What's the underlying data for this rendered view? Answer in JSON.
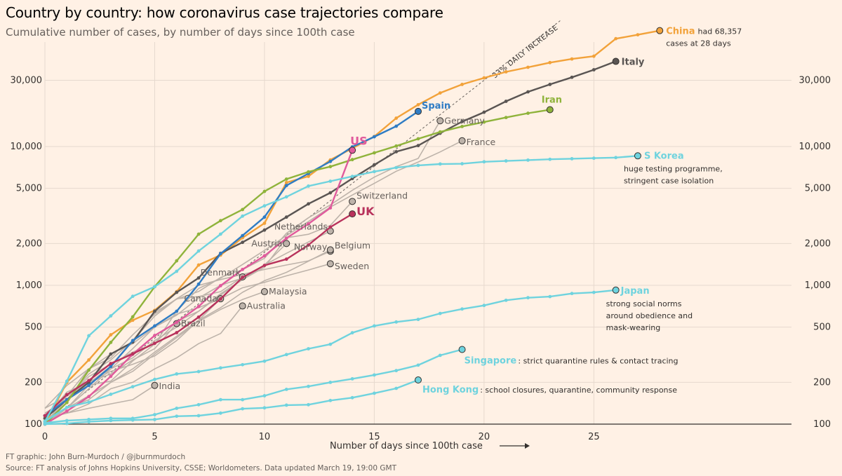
{
  "title": "Country by country: how coronavirus case trajectories compare",
  "subtitle": "Cumulative number of cases, by number of days since 100th case",
  "credit": "FT graphic: John Burn-Murdoch / @jburnmurdoch",
  "source": "Source: FT analysis of Johns Hopkins University, CSSE; Worldometers. Data updated March 19, 19:00 GMT",
  "chart_data": {
    "type": "line",
    "title": "Country by country: how coronavirus case trajectories compare",
    "xlabel": "Number of days since 100th case",
    "ylabel": "",
    "xlim": [
      0,
      34
    ],
    "ylim": [
      100,
      90000
    ],
    "yscale": "log",
    "xticks": [
      0,
      5,
      10,
      15,
      20,
      25
    ],
    "yticks": [
      100,
      200,
      500,
      1000,
      2000,
      5000,
      10000,
      30000
    ],
    "ytick_labels": [
      "100",
      "200",
      "500",
      "1,000",
      "2,000",
      "5,000",
      "10,000",
      "30,000"
    ],
    "grid": true,
    "reference_line": {
      "label": "33% DAILY INCREASE",
      "growth": 1.33
    },
    "series": [
      {
        "name": "China",
        "color": "#f2a23a",
        "bold": true,
        "x": [
          0,
          1,
          2,
          3,
          4,
          5,
          6,
          7,
          8,
          9,
          10,
          11,
          12,
          13,
          14,
          15,
          16,
          17,
          18,
          19,
          20,
          21,
          22,
          23,
          24,
          25,
          26,
          27,
          28
        ],
        "y": [
          100,
          200,
          290,
          440,
          560,
          660,
          900,
          1400,
          1650,
          2200,
          2800,
          5500,
          6100,
          8000,
          9700,
          11800,
          16000,
          20000,
          24300,
          28000,
          31200,
          34500,
          37200,
          40200,
          42700,
          44700,
          59800,
          63800,
          68357
        ],
        "annotation": [
          "had 68,357",
          "cases at 28 days"
        ]
      },
      {
        "name": "Italy",
        "color": "#5a5553",
        "bold": true,
        "x": [
          0,
          1,
          2,
          3,
          4,
          5,
          6,
          7,
          8,
          9,
          10,
          11,
          12,
          13,
          14,
          15,
          16,
          17,
          18,
          19,
          20,
          21,
          22,
          23,
          24,
          25,
          26
        ],
        "y": [
          110,
          150,
          200,
          320,
          390,
          650,
          890,
          1130,
          1700,
          2040,
          2500,
          3100,
          3860,
          4640,
          5880,
          7380,
          9170,
          10150,
          12460,
          15110,
          17660,
          21160,
          24750,
          27990,
          31510,
          35710,
          41040
        ]
      },
      {
        "name": "Spain",
        "color": "#2f7cc4",
        "bold": true,
        "x": [
          0,
          1,
          2,
          3,
          4,
          5,
          6,
          7,
          8,
          9,
          10,
          11,
          12,
          13,
          14,
          15,
          16,
          17
        ],
        "y": [
          115,
          150,
          190,
          260,
          400,
          510,
          650,
          1020,
          1690,
          2280,
          3100,
          5230,
          6390,
          7800,
          9940,
          11750,
          14000,
          17900
        ]
      },
      {
        "name": "Iran",
        "color": "#8fb33b",
        "bold": true,
        "x": [
          0,
          1,
          2,
          3,
          4,
          5,
          6,
          7,
          8,
          9,
          10,
          11,
          12,
          13,
          14,
          15,
          16,
          17,
          18,
          19,
          20,
          21,
          22,
          23
        ],
        "y": [
          100,
          143,
          245,
          388,
          593,
          978,
          1501,
          2336,
          2922,
          3513,
          4747,
          5823,
          6566,
          7161,
          8042,
          9000,
          10075,
          11364,
          12729,
          13938,
          14991,
          16169,
          17361,
          18407
        ]
      },
      {
        "name": "US",
        "color": "#e05a9c",
        "bold": true,
        "x": [
          0,
          1,
          2,
          3,
          4,
          5,
          6,
          7,
          8,
          9,
          10,
          11,
          12,
          13,
          14
        ],
        "y": [
          100,
          124,
          158,
          221,
          319,
          435,
          541,
          704,
          994,
          1301,
          1630,
          2183,
          2770,
          3613,
          9400
        ]
      },
      {
        "name": "UK",
        "color": "#b8325c",
        "bold": true,
        "x": [
          0,
          1,
          2,
          3,
          4,
          5,
          6,
          7,
          8,
          9,
          10,
          11,
          12,
          13,
          14
        ],
        "y": [
          115,
          163,
          206,
          273,
          321,
          382,
          456,
          590,
          798,
          1140,
          1391,
          1543,
          1950,
          2626,
          3269
        ]
      },
      {
        "name": "S Korea",
        "color": "#6fd3de",
        "bold": true,
        "x": [
          0,
          1,
          2,
          3,
          4,
          5,
          6,
          7,
          8,
          9,
          10,
          11,
          12,
          13,
          14,
          15,
          16,
          17,
          18,
          19,
          20,
          21,
          22,
          23,
          24,
          25,
          26,
          27
        ],
        "y": [
          104,
          204,
          433,
          602,
          833,
          977,
          1261,
          1766,
          2337,
          3150,
          3736,
          4335,
          5186,
          5621,
          6088,
          6593,
          7041,
          7313,
          7478,
          7513,
          7755,
          7869,
          7979,
          8086,
          8162,
          8236,
          8320,
          8565
        ],
        "annotation": [
          "huge testing programme,",
          "stringent case isolation"
        ]
      },
      {
        "name": "Japan",
        "color": "#6fd3de",
        "bold": true,
        "x": [
          0,
          1,
          2,
          3,
          4,
          5,
          6,
          7,
          8,
          9,
          10,
          11,
          12,
          13,
          14,
          15,
          16,
          17,
          18,
          19,
          20,
          21,
          22,
          23,
          24,
          25,
          26
        ],
        "y": [
          105,
          132,
          144,
          164,
          186,
          210,
          230,
          239,
          254,
          268,
          284,
          317,
          349,
          376,
          455,
          510,
          544,
          568,
          627,
          675,
          716,
          780,
          814,
          829,
          873,
          889,
          924
        ],
        "annotation": [
          "strong social norms",
          "around obedience and",
          "mask-wearing"
        ]
      },
      {
        "name": "Singapore",
        "color": "#6fd3de",
        "bold": true,
        "x": [
          0,
          1,
          2,
          3,
          4,
          5,
          6,
          7,
          8,
          9,
          10,
          11,
          12,
          13,
          14,
          15,
          16,
          17,
          18,
          19
        ],
        "y": [
          102,
          106,
          108,
          110,
          110,
          117,
          130,
          138,
          150,
          150,
          160,
          178,
          187,
          200,
          212,
          226,
          243,
          266,
          313,
          345
        ],
        "annotation": [
          "strict quarantine rules & contact tracing"
        ]
      },
      {
        "name": "Hong Kong",
        "color": "#6fd3de",
        "bold": true,
        "x": [
          0,
          1,
          2,
          3,
          4,
          5,
          6,
          7,
          8,
          9,
          10,
          11,
          12,
          13,
          14,
          15,
          16,
          17
        ],
        "y": [
          100,
          101,
          104,
          106,
          107,
          108,
          114,
          115,
          120,
          129,
          131,
          137,
          138,
          148,
          155,
          167,
          181,
          208
        ],
        "annotation": [
          "school closures, quarantine, community response"
        ]
      },
      {
        "name": "Germany",
        "color": "#bdb3aa",
        "bold": false,
        "x": [
          0,
          1,
          2,
          3,
          4,
          5,
          6,
          7,
          8,
          9,
          10,
          11,
          12,
          13,
          14,
          15,
          16,
          17,
          18
        ],
        "y": [
          130,
          159,
          196,
          262,
          400,
          639,
          795,
          902,
          1139,
          1296,
          1567,
          2369,
          3062,
          3795,
          4838,
          6012,
          7156,
          8198,
          15320
        ]
      },
      {
        "name": "France",
        "color": "#bdb3aa",
        "bold": false,
        "x": [
          0,
          1,
          2,
          3,
          4,
          5,
          6,
          7,
          8,
          9,
          10,
          11,
          12,
          13,
          14,
          15,
          16,
          17,
          18,
          19
        ],
        "y": [
          100,
          130,
          191,
          204,
          285,
          377,
          653,
          949,
          1126,
          1412,
          1784,
          2281,
          2876,
          3661,
          4469,
          5423,
          6633,
          7730,
          9134,
          10995
        ]
      },
      {
        "name": "Switzerland",
        "color": "#bdb3aa",
        "bold": false,
        "x": [
          0,
          1,
          2,
          3,
          4,
          5,
          6,
          7,
          8,
          9,
          10,
          11,
          12,
          13,
          14
        ],
        "y": [
          100,
          150,
          220,
          270,
          330,
          380,
          550,
          650,
          870,
          1100,
          1350,
          2200,
          2330,
          2700,
          4020
        ]
      },
      {
        "name": "Netherlands",
        "color": "#bdb3aa",
        "bold": false,
        "x": [
          0,
          1,
          2,
          3,
          4,
          5,
          6,
          7,
          8,
          9,
          10,
          11,
          12,
          13
        ],
        "y": [
          130,
          190,
          250,
          320,
          380,
          500,
          610,
          810,
          1000,
          1130,
          1400,
          1700,
          2050,
          2460
        ]
      },
      {
        "name": "Austria",
        "color": "#bdb3aa",
        "bold": false,
        "x": [
          0,
          1,
          2,
          3,
          4,
          5,
          6,
          7,
          8,
          9,
          10,
          11
        ],
        "y": [
          100,
          130,
          180,
          250,
          300,
          400,
          500,
          650,
          850,
          1100,
          1400,
          2000
        ]
      },
      {
        "name": "Norway",
        "color": "#bdb3aa",
        "bold": false,
        "x": [
          0,
          1,
          2,
          3,
          4,
          5,
          6,
          7,
          8,
          9,
          10,
          11,
          12,
          13
        ],
        "y": [
          110,
          150,
          230,
          290,
          400,
          600,
          800,
          1000,
          1100,
          1200,
          1300,
          1400,
          1500,
          1760
        ]
      },
      {
        "name": "Belgium",
        "color": "#bdb3aa",
        "bold": false,
        "x": [
          0,
          1,
          2,
          3,
          4,
          5,
          6,
          7,
          8,
          9,
          10,
          11,
          12,
          13
        ],
        "y": [
          110,
          170,
          200,
          240,
          270,
          310,
          400,
          560,
          690,
          890,
          1080,
          1240,
          1490,
          1800
        ]
      },
      {
        "name": "Sweden",
        "color": "#bdb3aa",
        "bold": false,
        "x": [
          0,
          1,
          2,
          3,
          4,
          5,
          6,
          7,
          8,
          9,
          10,
          11,
          12,
          13
        ],
        "y": [
          100,
          160,
          200,
          250,
          350,
          500,
          620,
          690,
          800,
          960,
          1050,
          1170,
          1290,
          1430
        ]
      },
      {
        "name": "Denmark",
        "color": "#bdb3aa",
        "bold": false,
        "x": [
          0,
          1,
          2,
          3,
          4,
          5,
          6,
          7,
          8,
          9
        ],
        "y": [
          110,
          160,
          250,
          300,
          440,
          620,
          800,
          830,
          900,
          1150
        ]
      },
      {
        "name": "Malaysia",
        "color": "#bdb3aa",
        "bold": false,
        "x": [
          0,
          1,
          2,
          3,
          4,
          5,
          6,
          7,
          8,
          9,
          10
        ],
        "y": [
          110,
          130,
          150,
          200,
          240,
          320,
          420,
          550,
          670,
          790,
          900
        ]
      },
      {
        "name": "Canada",
        "color": "#bdb3aa",
        "bold": false,
        "x": [
          0,
          1,
          2,
          3,
          4,
          5,
          6,
          7,
          8
        ],
        "y": [
          100,
          130,
          160,
          200,
          250,
          330,
          430,
          560,
          800
        ]
      },
      {
        "name": "Australia",
        "color": "#bdb3aa",
        "bold": false,
        "x": [
          0,
          1,
          2,
          3,
          4,
          5,
          6,
          7,
          8,
          9
        ],
        "y": [
          110,
          120,
          140,
          180,
          200,
          250,
          300,
          380,
          450,
          710
        ]
      },
      {
        "name": "Brazil",
        "color": "#bdb3aa",
        "bold": false,
        "x": [
          0,
          1,
          2,
          3,
          4,
          5,
          6
        ],
        "y": [
          120,
          150,
          200,
          230,
          290,
          350,
          530
        ]
      },
      {
        "name": "India",
        "color": "#bdb3aa",
        "bold": false,
        "x": [
          0,
          1,
          2,
          3,
          4,
          5
        ],
        "y": [
          110,
          120,
          130,
          140,
          150,
          190
        ]
      }
    ]
  }
}
